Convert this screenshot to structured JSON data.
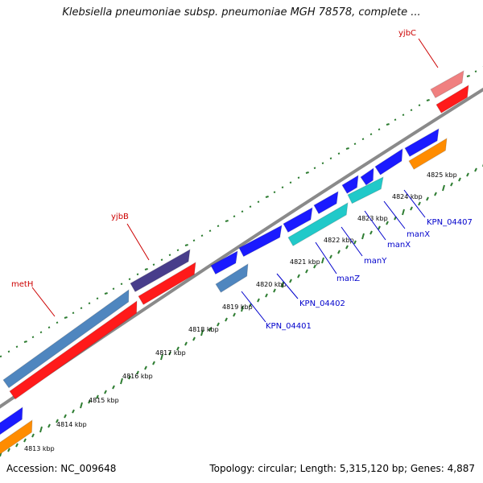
{
  "title": "Klebsiella pneumoniae subsp. pneumoniae MGH 78578, complete ...",
  "footer": {
    "accession": "Accession: NC_009648",
    "summary": "Topology: circular; Length: 5,315,120 bp; Genes: 4,887"
  },
  "colors": {
    "backbone": "#8a8a8a",
    "tick_major": "#2e7d32",
    "tick_minor": "#2e7d32",
    "gene_blue": "#1a1aff",
    "gene_red": "#ff1a1a",
    "gene_steelblue": "#4f86bf",
    "gene_darkslate": "#483d8b",
    "gene_cyan": "#21c9c9",
    "gene_orange": "#ff8c00",
    "gene_pink": "#f08080",
    "label_blue": "#0000cc",
    "label_red": "#cc0000"
  },
  "scale_labels": [
    "4813 kbp",
    "4814 kbp",
    "4815 kbp",
    "4816 kbp",
    "4817 kbp",
    "4818 kbp",
    "4819 kbp",
    "4820 kbp",
    "4821 kbp",
    "4822 kbp",
    "4823 kbp",
    "4824 kbp",
    "4825 kbp"
  ],
  "gene_labels": [
    {
      "text": "metH",
      "color": "red"
    },
    {
      "text": "yjbB",
      "color": "red"
    },
    {
      "text": "yjbC",
      "color": "red"
    },
    {
      "text": "KPN_04401",
      "color": "blue"
    },
    {
      "text": "KPN_04402",
      "color": "blue"
    },
    {
      "text": "manZ",
      "color": "blue"
    },
    {
      "text": "manY",
      "color": "blue"
    },
    {
      "text": "manX",
      "color": "blue"
    },
    {
      "text": "manX",
      "color": "blue"
    },
    {
      "text": "KPN_04407",
      "color": "blue"
    }
  ]
}
